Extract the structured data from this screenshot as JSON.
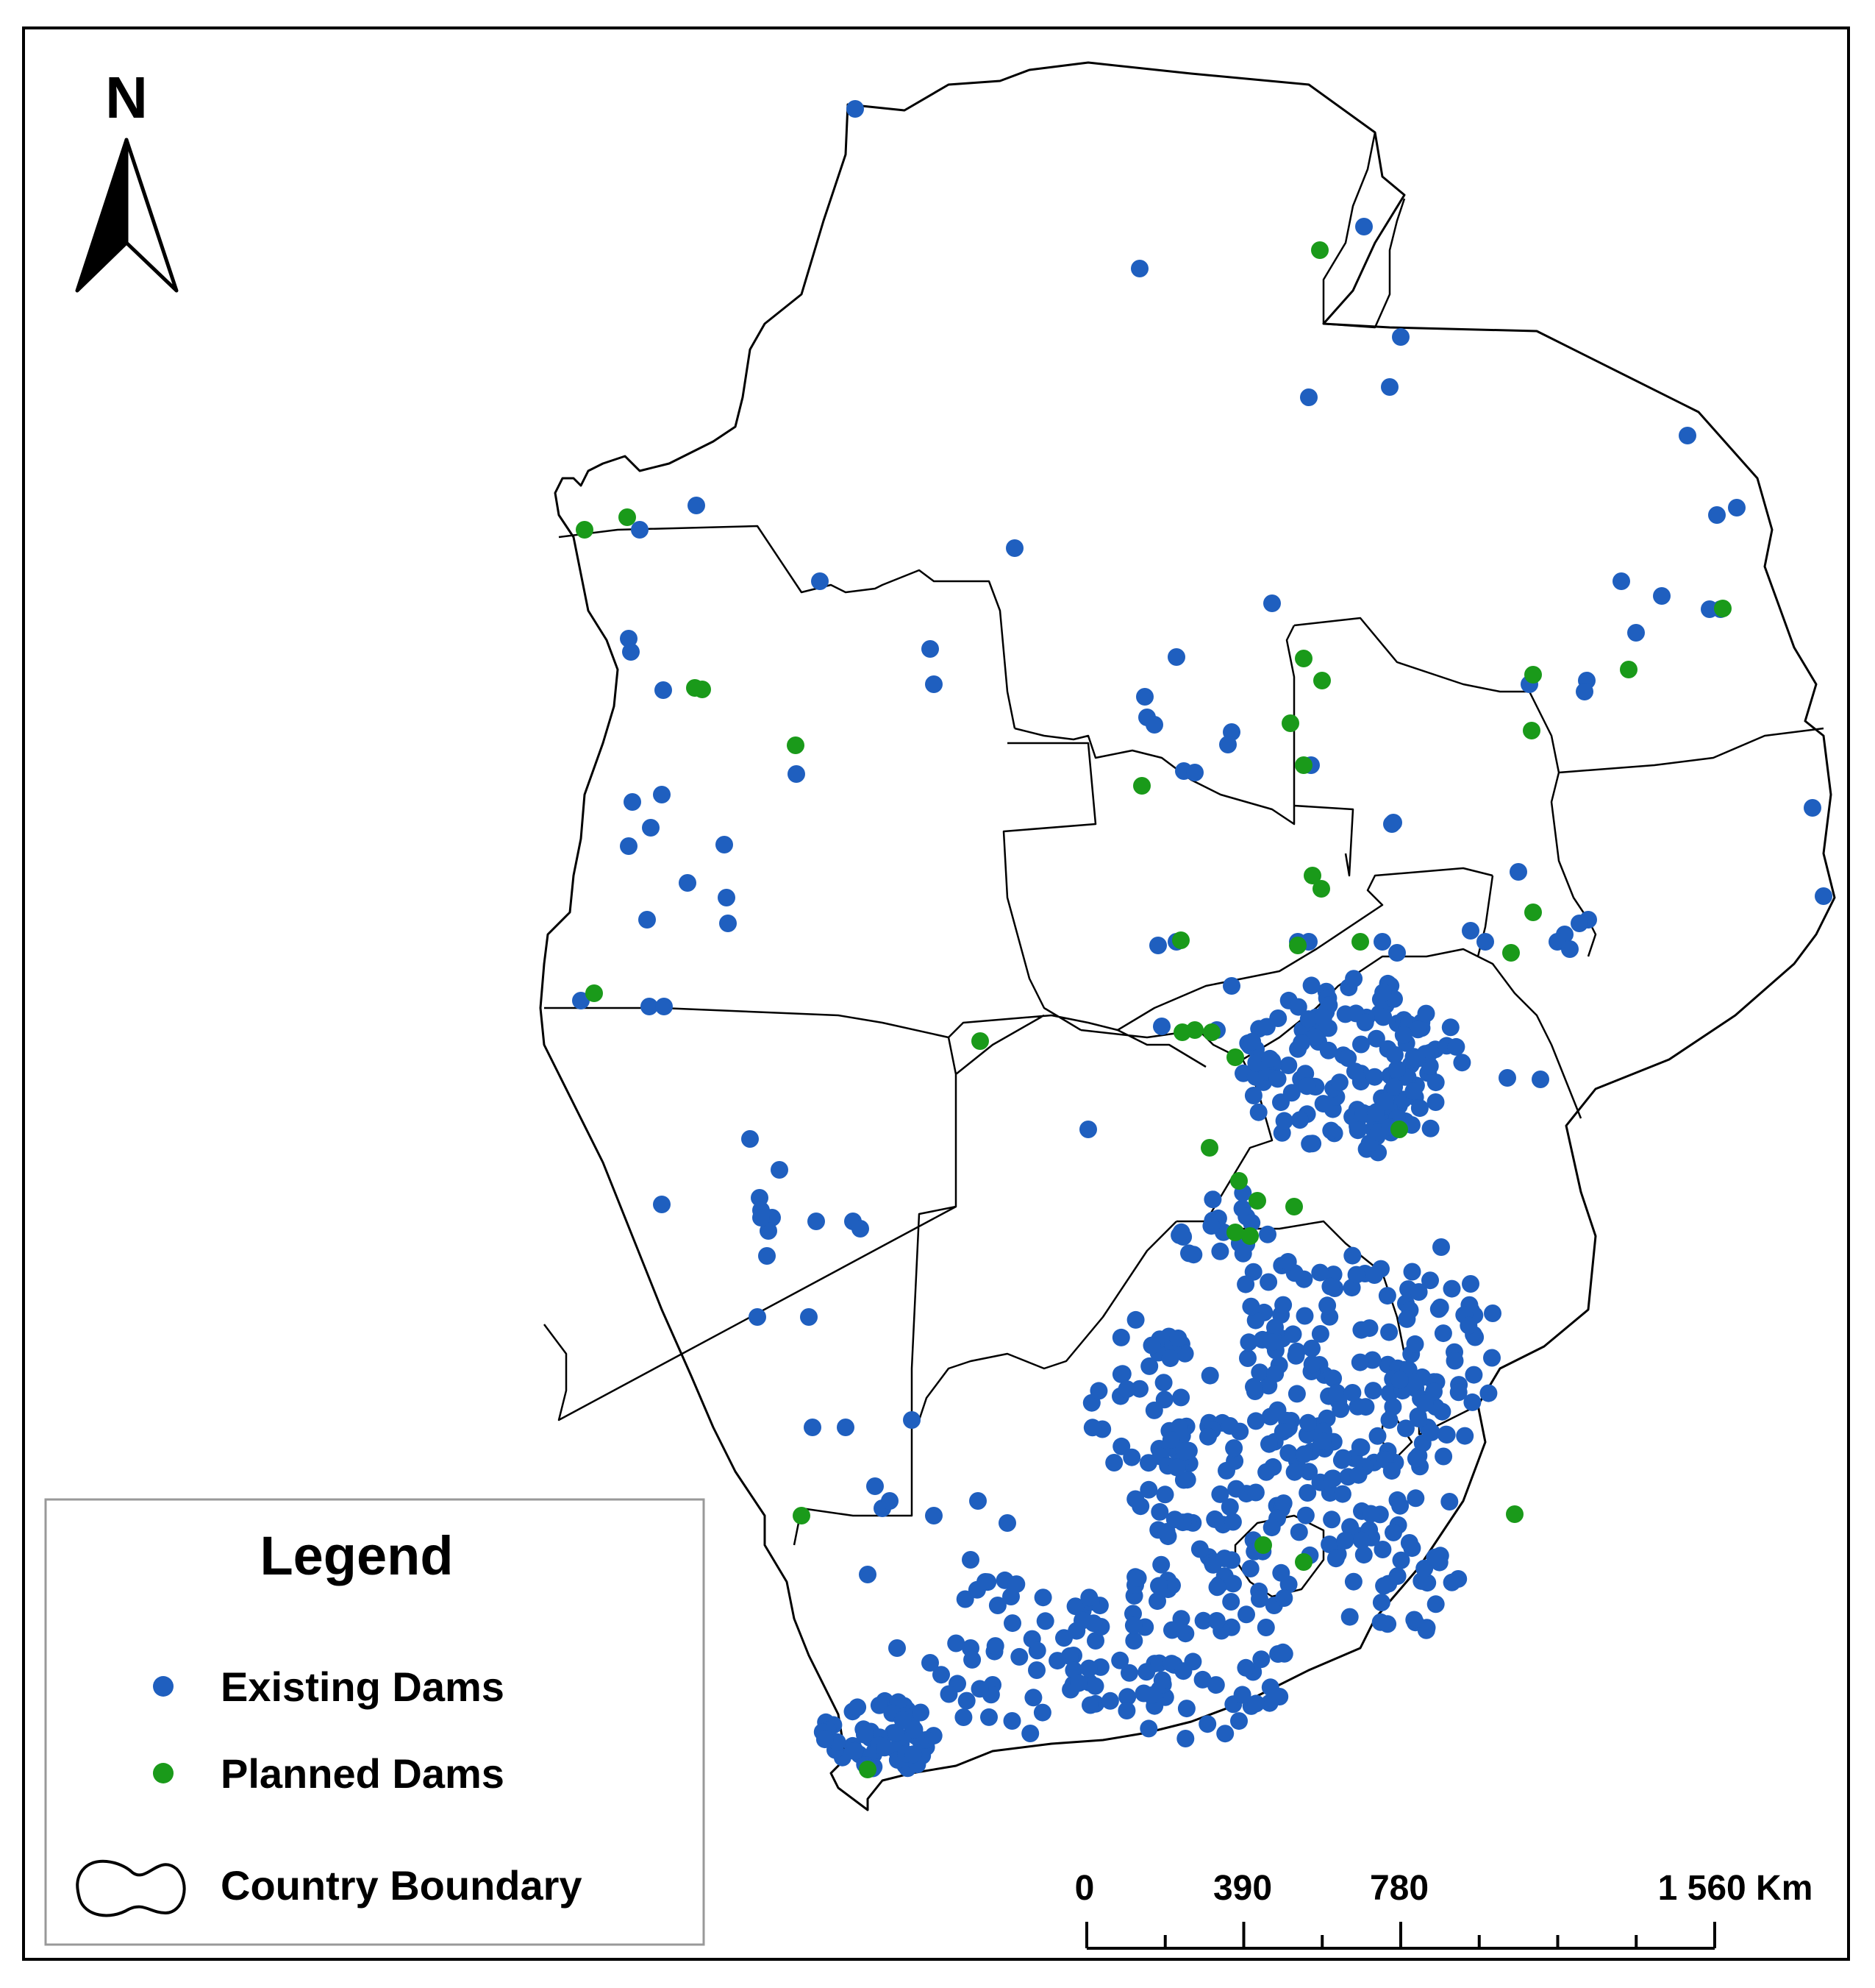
{
  "north_arrow": {
    "label": "N"
  },
  "legend": {
    "title": "Legend",
    "items": [
      {
        "label": "Existing Dams",
        "symbol": "dot",
        "color": "#1f5fbf"
      },
      {
        "label": "Planned Dams",
        "symbol": "dot",
        "color": "#1a9a1a"
      },
      {
        "label": "Country Boundary",
        "symbol": "outline",
        "color": "#000000"
      }
    ]
  },
  "scale_bar": {
    "unit": "Km",
    "labels": [
      "0",
      "390",
      "780",
      "1 560 Km"
    ],
    "values_km": [
      0,
      390,
      780,
      1560
    ],
    "minor_ticks": 8
  },
  "colors": {
    "existing_dams": "#1f5fbf",
    "planned_dams": "#1a9a1a",
    "boundary": "#000000",
    "background": "#ffffff"
  }
}
